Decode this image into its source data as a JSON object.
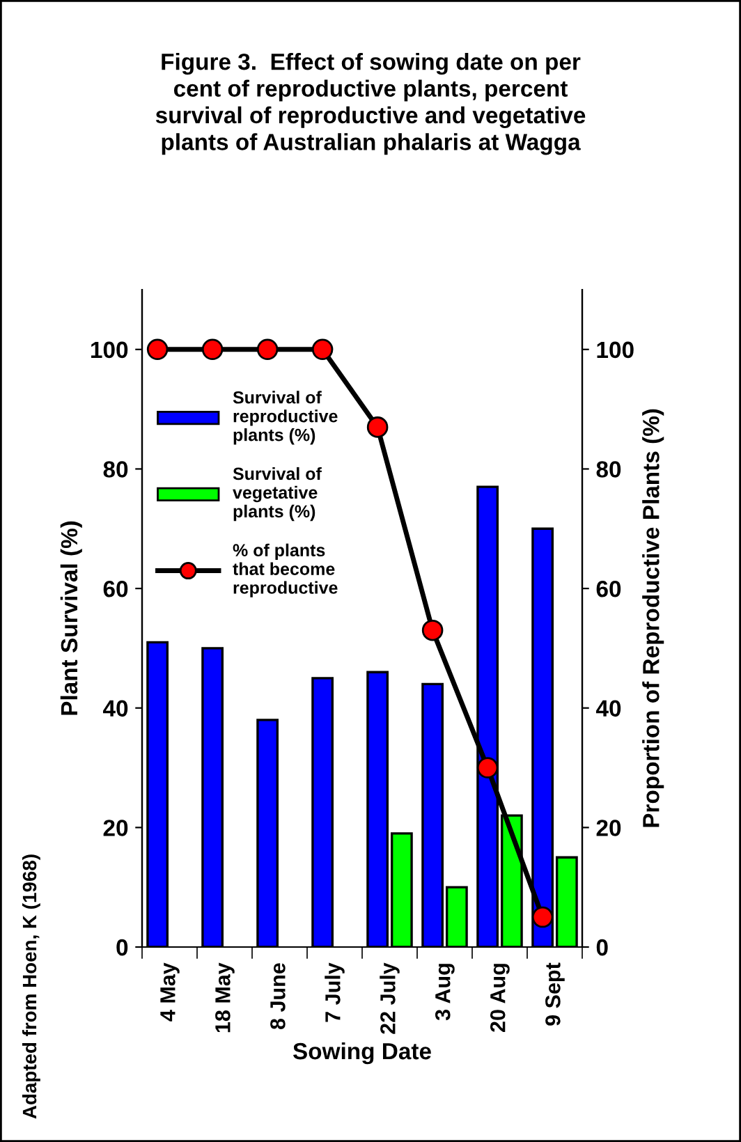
{
  "chart_data": {
    "type": "bar",
    "title": "Figure 3.  Effect of sowing date on per\ncent of reproductive plants, percent\nsurvival of reproductive and vegetative\nplants of Australian phalaris at Wagga",
    "xlabel": "Sowing Date",
    "ylabel": "Plant Survival (%)",
    "y2label": "Proportion of Reproductive Plants (%)",
    "annotations": [
      "Adapted from Hoen, K (1968)"
    ],
    "categories": [
      "4 May",
      "18 May",
      "8 June",
      "7 July",
      "22 July",
      "3 Aug",
      "20 Aug",
      "9 Sept"
    ],
    "series": [
      {
        "name": "Survival of\nreproductive\nplants (%)",
        "color": "#0000ff",
        "values": [
          51,
          50,
          38,
          45,
          46,
          44,
          77,
          70
        ]
      },
      {
        "name": "Survival of\nvegetative\nplants (%)",
        "color": "#00ff00",
        "values": [
          null,
          null,
          null,
          null,
          19,
          10,
          22,
          15
        ]
      },
      {
        "name": "% of plants\nthat become\nreproductive",
        "type": "line",
        "axis": "y2",
        "color": "#ff0000",
        "marker": "circle",
        "values": [
          100,
          100,
          100,
          100,
          87,
          53,
          30,
          5
        ]
      }
    ],
    "ylim": [
      0,
      110
    ],
    "yticks": [
      0,
      20,
      40,
      60,
      80,
      100
    ],
    "y2lim": [
      0,
      110
    ],
    "y2ticks": [
      0,
      20,
      40,
      60,
      80,
      100
    ],
    "grid": false,
    "legend": "top left"
  }
}
